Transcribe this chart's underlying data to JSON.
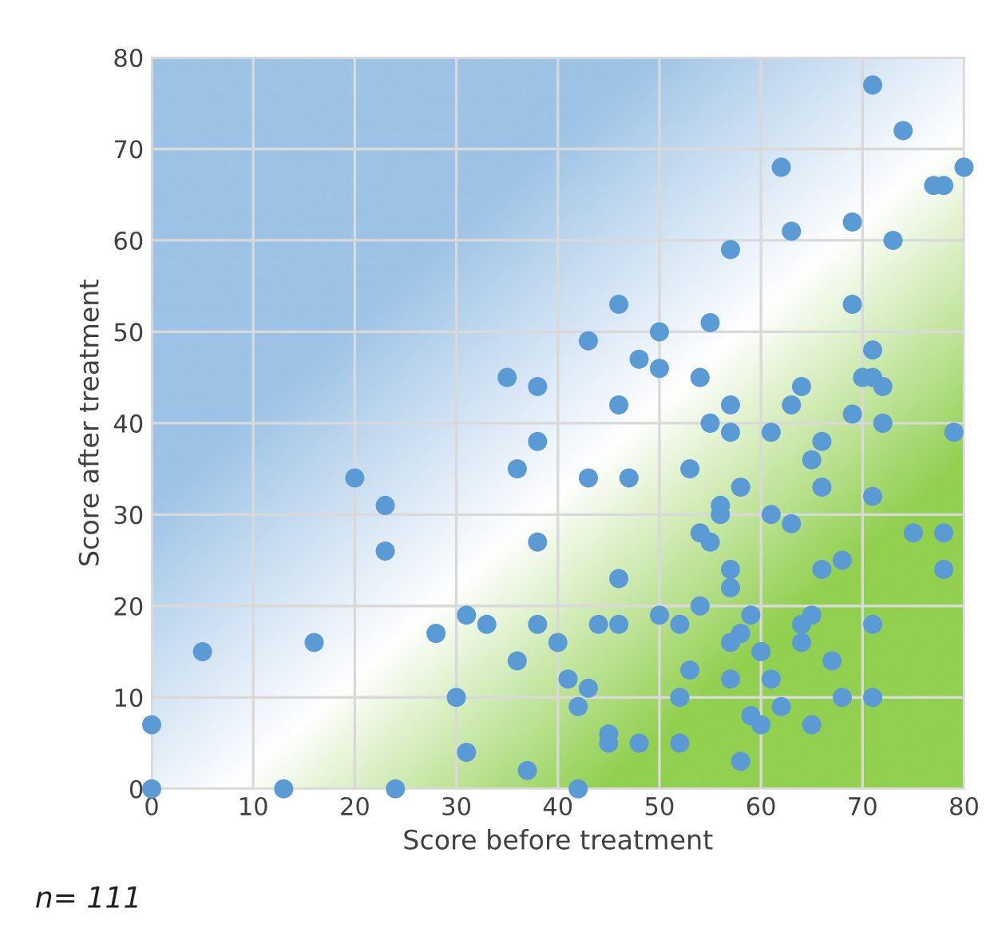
{
  "chart_data": {
    "type": "scatter",
    "xlabel": "Score before treatment",
    "ylabel": "Score after treatment",
    "xlim": [
      0,
      80
    ],
    "ylim": [
      0,
      80
    ],
    "xticks": [
      0,
      10,
      20,
      30,
      40,
      50,
      60,
      70,
      80
    ],
    "yticks": [
      0,
      10,
      20,
      30,
      40,
      50,
      60,
      70,
      80
    ],
    "grid": true,
    "marker": "circle",
    "annotations": [
      "n= 111"
    ],
    "series": [
      {
        "color": "#5b9bd5",
        "x": [
          0,
          0,
          5,
          13,
          16,
          20,
          23,
          23,
          24,
          28,
          30,
          31,
          31,
          33,
          35,
          36,
          36,
          37,
          38,
          38,
          38,
          38,
          40,
          41,
          42,
          42,
          43,
          43,
          43,
          44,
          45,
          45,
          46,
          46,
          46,
          46,
          47,
          48,
          48,
          50,
          50,
          50,
          52,
          52,
          52,
          53,
          53,
          54,
          54,
          54,
          55,
          55,
          55,
          56,
          56,
          57,
          57,
          57,
          57,
          57,
          57,
          57,
          58,
          58,
          58,
          59,
          59,
          60,
          60,
          61,
          61,
          61,
          62,
          62,
          63,
          63,
          63,
          64,
          64,
          64,
          65,
          65,
          65,
          66,
          66,
          66,
          67,
          68,
          68,
          69,
          69,
          69,
          70,
          71,
          71,
          71,
          71,
          71,
          71,
          72,
          72,
          73,
          74,
          75,
          77,
          78,
          78,
          78,
          79,
          80
        ],
        "values": [
          7,
          0,
          15,
          0,
          16,
          34,
          31,
          26,
          0,
          17,
          10,
          19,
          4,
          18,
          45,
          35,
          14,
          2,
          44,
          38,
          27,
          18,
          16,
          12,
          9,
          0,
          49,
          34,
          11,
          18,
          6,
          5,
          53,
          42,
          23,
          18,
          34,
          47,
          5,
          50,
          46,
          19,
          18,
          10,
          5,
          35,
          13,
          45,
          28,
          20,
          51,
          40,
          27,
          31,
          30,
          59,
          42,
          39,
          24,
          22,
          16,
          12,
          33,
          17,
          3,
          19,
          8,
          15,
          7,
          39,
          30,
          12,
          68,
          9,
          61,
          42,
          29,
          44,
          18,
          16,
          36,
          19,
          7,
          38,
          33,
          24,
          14,
          25,
          10,
          62,
          53,
          41,
          45,
          77,
          48,
          45,
          32,
          18,
          10,
          44,
          40,
          60,
          72,
          28,
          66,
          66,
          28,
          24,
          39,
          68
        ]
      }
    ]
  }
}
